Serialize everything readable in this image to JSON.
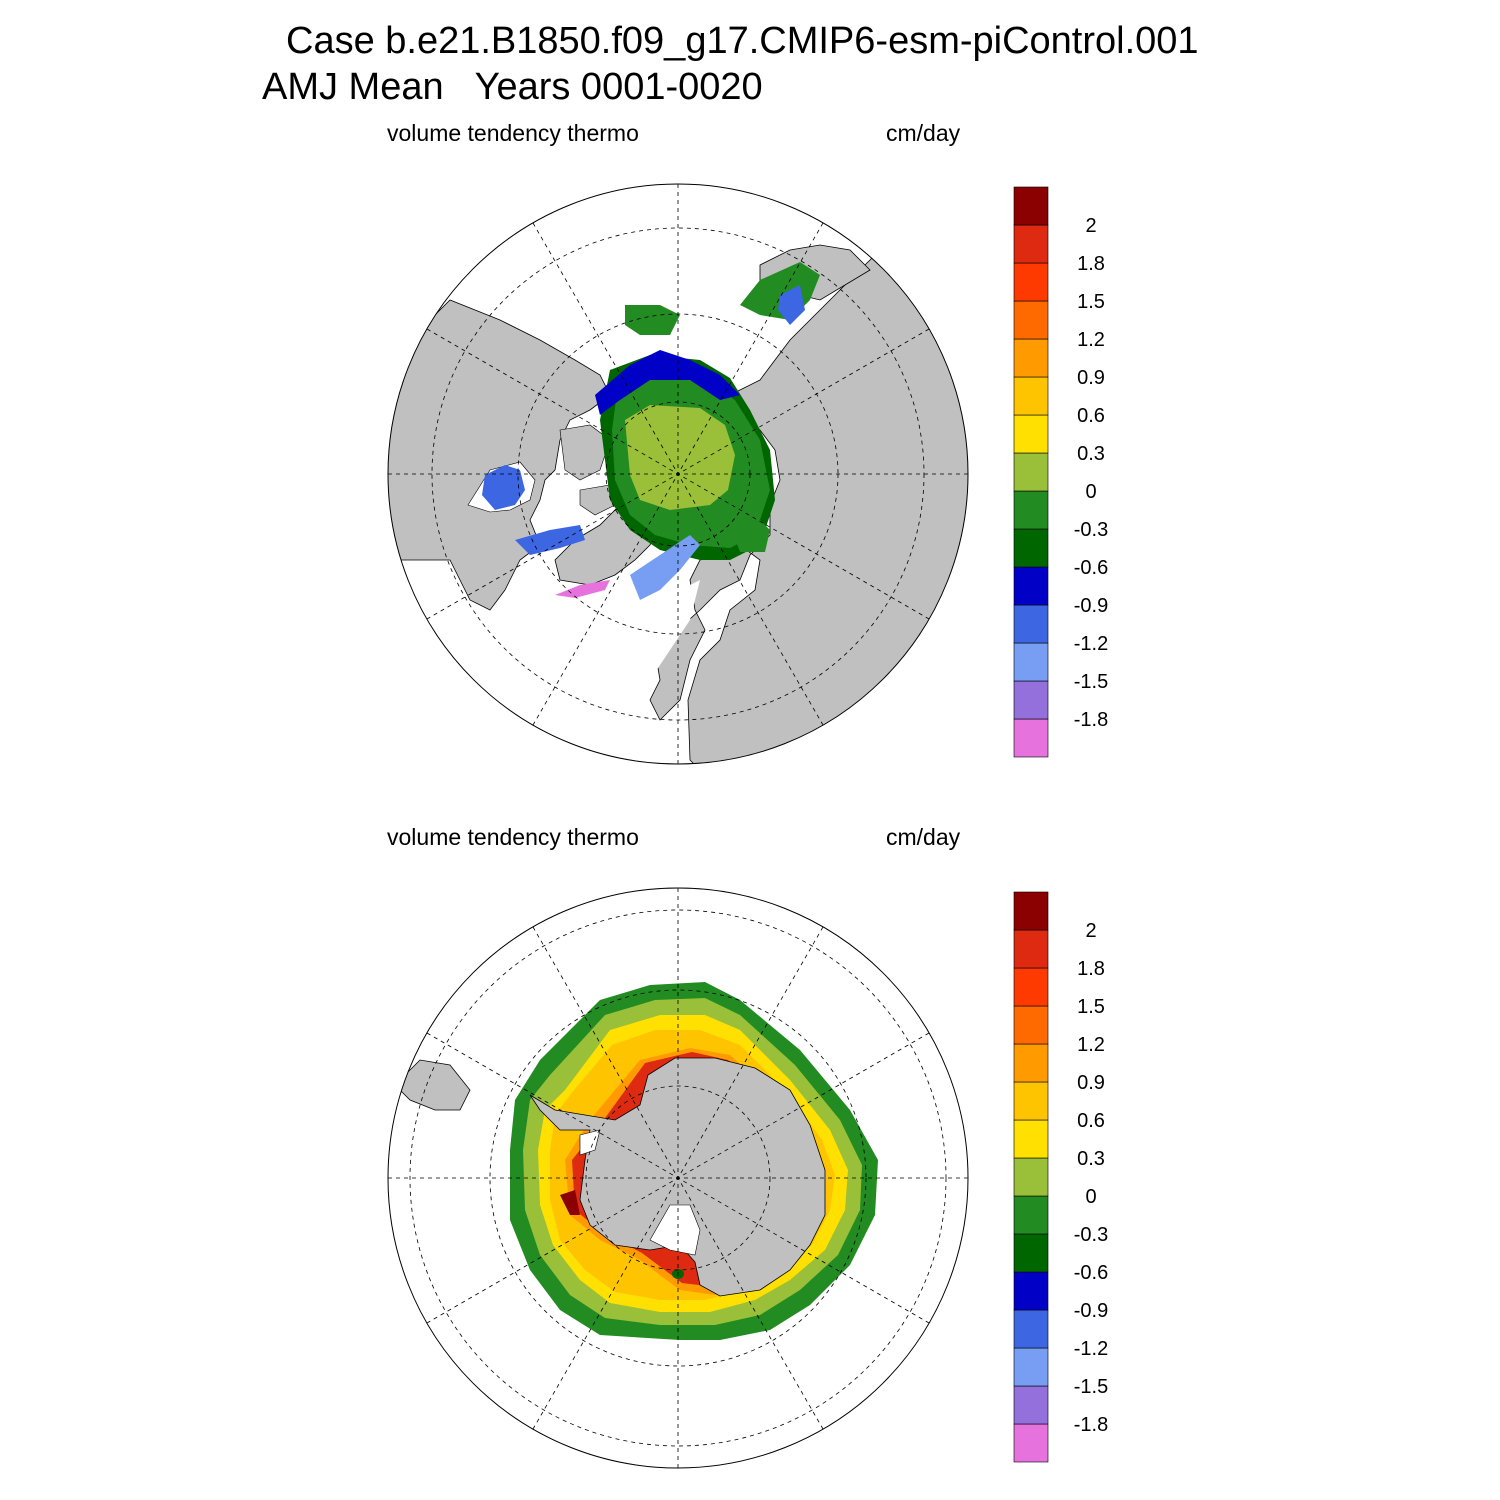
{
  "header": {
    "case_line": "Case b.e21.B1850.f09_g17.CMIP6-esm-piControl.001",
    "period_line": "AMJ Mean   Years 0001-0020"
  },
  "colors": {
    "land": "#c0c0c0",
    "map_background": "#ffffff",
    "scale": [
      "#e673dd",
      "#9370db",
      "#779ef2",
      "#3d66e3",
      "#0000c7",
      "#006600",
      "#228b22",
      "#9abf38",
      "#ffe000",
      "#ffc400",
      "#ff9a00",
      "#ff6a00",
      "#ff3a00",
      "#dd2a11",
      "#8b0000"
    ]
  },
  "panels": [
    {
      "id": "north",
      "hemisphere": "Northern",
      "variable_label": "volume tendency thermo",
      "units_label": "cm/day",
      "colorbar_labels": [
        "-1.8",
        "-1.5",
        "-1.2",
        "-0.9",
        "-0.6",
        "-0.3",
        "0",
        "0.3",
        "0.6",
        "0.9",
        "1.2",
        "1.5",
        "1.8",
        "2"
      ]
    },
    {
      "id": "south",
      "hemisphere": "Southern",
      "variable_label": "volume tendency thermo",
      "units_label": "cm/day",
      "colorbar_labels": [
        "-1.8",
        "-1.5",
        "-1.2",
        "-0.9",
        "-0.6",
        "-0.3",
        "0",
        "0.3",
        "0.6",
        "0.9",
        "1.2",
        "1.5",
        "1.8",
        "2"
      ]
    }
  ]
}
